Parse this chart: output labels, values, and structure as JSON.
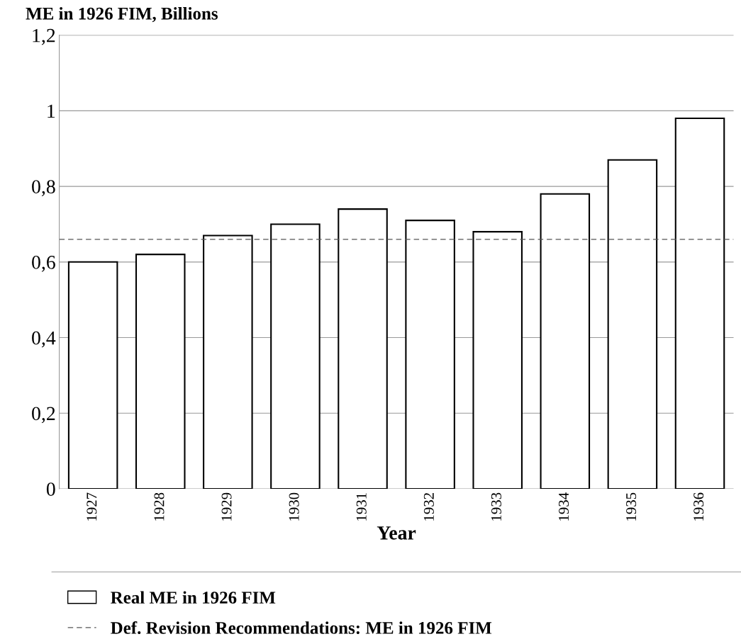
{
  "chart_data": {
    "type": "bar",
    "title": "ME in 1926 FIM, Billions",
    "xlabel": "Year",
    "categories": [
      "1927",
      "1928",
      "1929",
      "1930",
      "1931",
      "1932",
      "1933",
      "1934",
      "1935",
      "1936"
    ],
    "series": [
      {
        "name": "Real ME in 1926 FIM",
        "color": "#ffffff",
        "values": [
          0.6,
          0.62,
          0.67,
          0.7,
          0.74,
          0.71,
          0.68,
          0.78,
          0.87,
          0.98
        ]
      }
    ],
    "ylim": [
      0,
      1.2
    ],
    "yticks": [
      0,
      {
        "value": 0.2,
        "label": "0,2"
      },
      {
        "value": 0.4,
        "label": "0,4"
      },
      {
        "value": 0.6,
        "label": "0,6"
      },
      {
        "value": 0.8,
        "label": "0,8"
      },
      1,
      {
        "value": 1.2,
        "label": "1,2"
      }
    ],
    "ref_lines": [
      {
        "axis": "y",
        "value": 0.66,
        "label": "Def. Revision Recommendations: ME in 1926 FIM",
        "color": "#555555",
        "line_style": "dashed"
      }
    ],
    "grid": "y",
    "legend": "bottom"
  }
}
